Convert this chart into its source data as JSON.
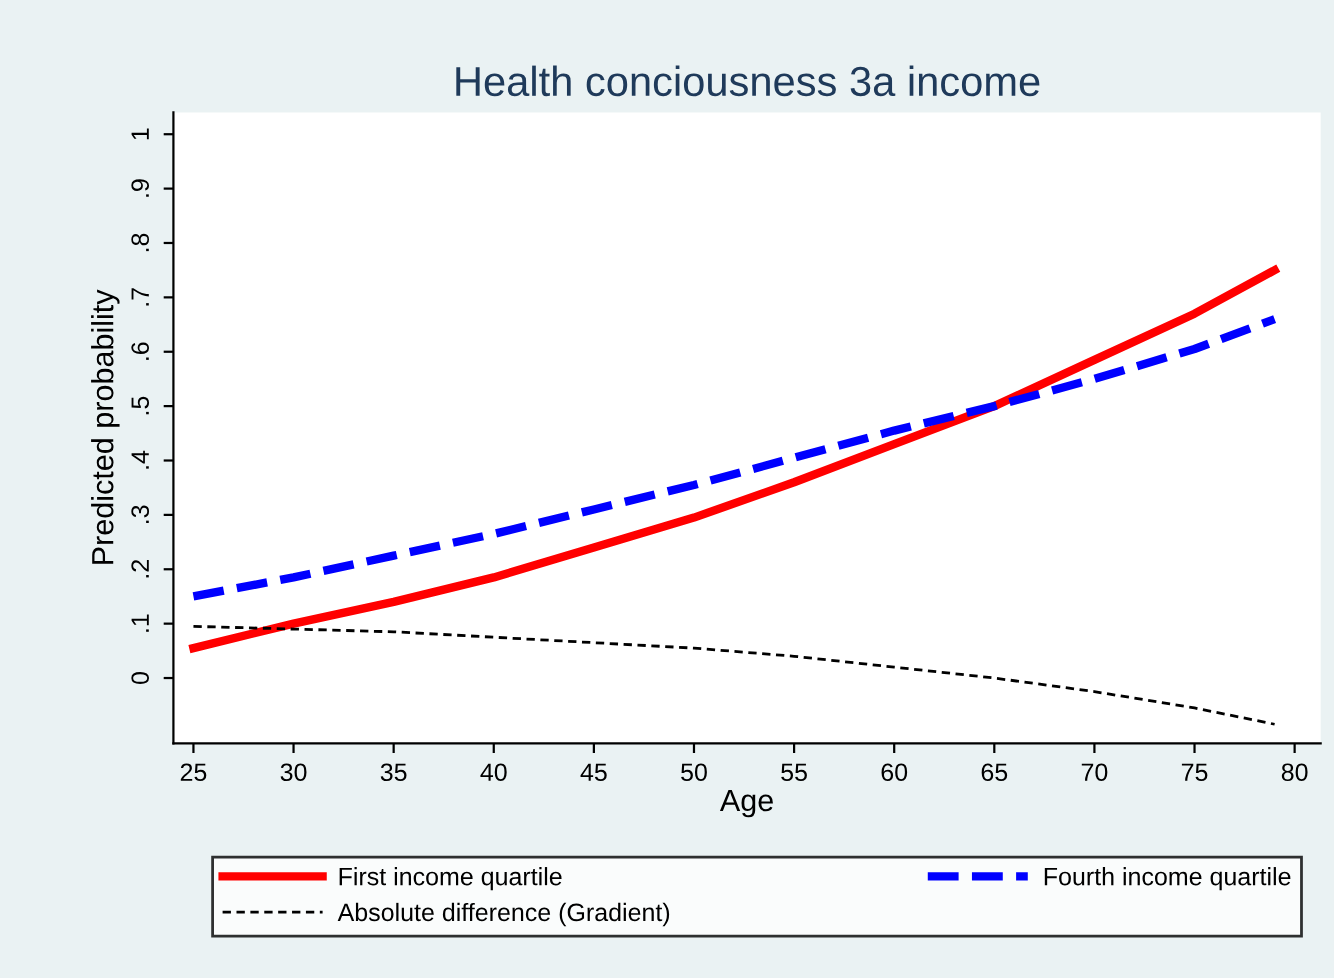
{
  "chart_data": {
    "type": "line",
    "title": "Health conciousness 3a income",
    "xlabel": "Age",
    "ylabel": "Predicted probability",
    "x": [
      25,
      30,
      35,
      40,
      45,
      50,
      55,
      60,
      65,
      70,
      75,
      79
    ],
    "series": [
      {
        "name": "First income quartile",
        "color": "#ff0000",
        "line_style": "solid",
        "values": [
          0.055,
          0.1,
          0.14,
          0.185,
          0.24,
          0.295,
          0.36,
          0.43,
          0.5,
          0.585,
          0.67,
          0.75
        ]
      },
      {
        "name": "Fourth income quartile",
        "color": "#0000ff",
        "line_style": "dashed",
        "values": [
          0.15,
          0.185,
          0.225,
          0.265,
          0.31,
          0.355,
          0.405,
          0.455,
          0.5,
          0.55,
          0.605,
          0.66
        ]
      },
      {
        "name": "Absolute difference (Gradient)",
        "color": "#000000",
        "line_style": "dashed",
        "values": [
          0.095,
          0.09,
          0.085,
          0.075,
          0.065,
          0.055,
          0.04,
          0.02,
          0.0,
          -0.025,
          -0.055,
          -0.085
        ]
      }
    ],
    "xlim": [
      24,
      81.3
    ],
    "ylim": [
      -0.12,
      1.04
    ],
    "xticks": [
      25,
      30,
      35,
      40,
      45,
      50,
      55,
      60,
      65,
      70,
      75,
      80
    ],
    "yticks": [
      0,
      {
        "value": 0.1,
        "label": ".1"
      },
      {
        "value": 0.2,
        "label": ".2"
      },
      {
        "value": 0.3,
        "label": ".3"
      },
      {
        "value": 0.4,
        "label": ".4"
      },
      {
        "value": 0.5,
        "label": ".5"
      },
      {
        "value": 0.6,
        "label": ".6"
      },
      {
        "value": 0.7,
        "label": ".7"
      },
      {
        "value": 0.8,
        "label": ".8"
      },
      {
        "value": 0.9,
        "label": ".9"
      },
      1
    ],
    "grid": false,
    "legend": "bottom",
    "marker": "none"
  }
}
